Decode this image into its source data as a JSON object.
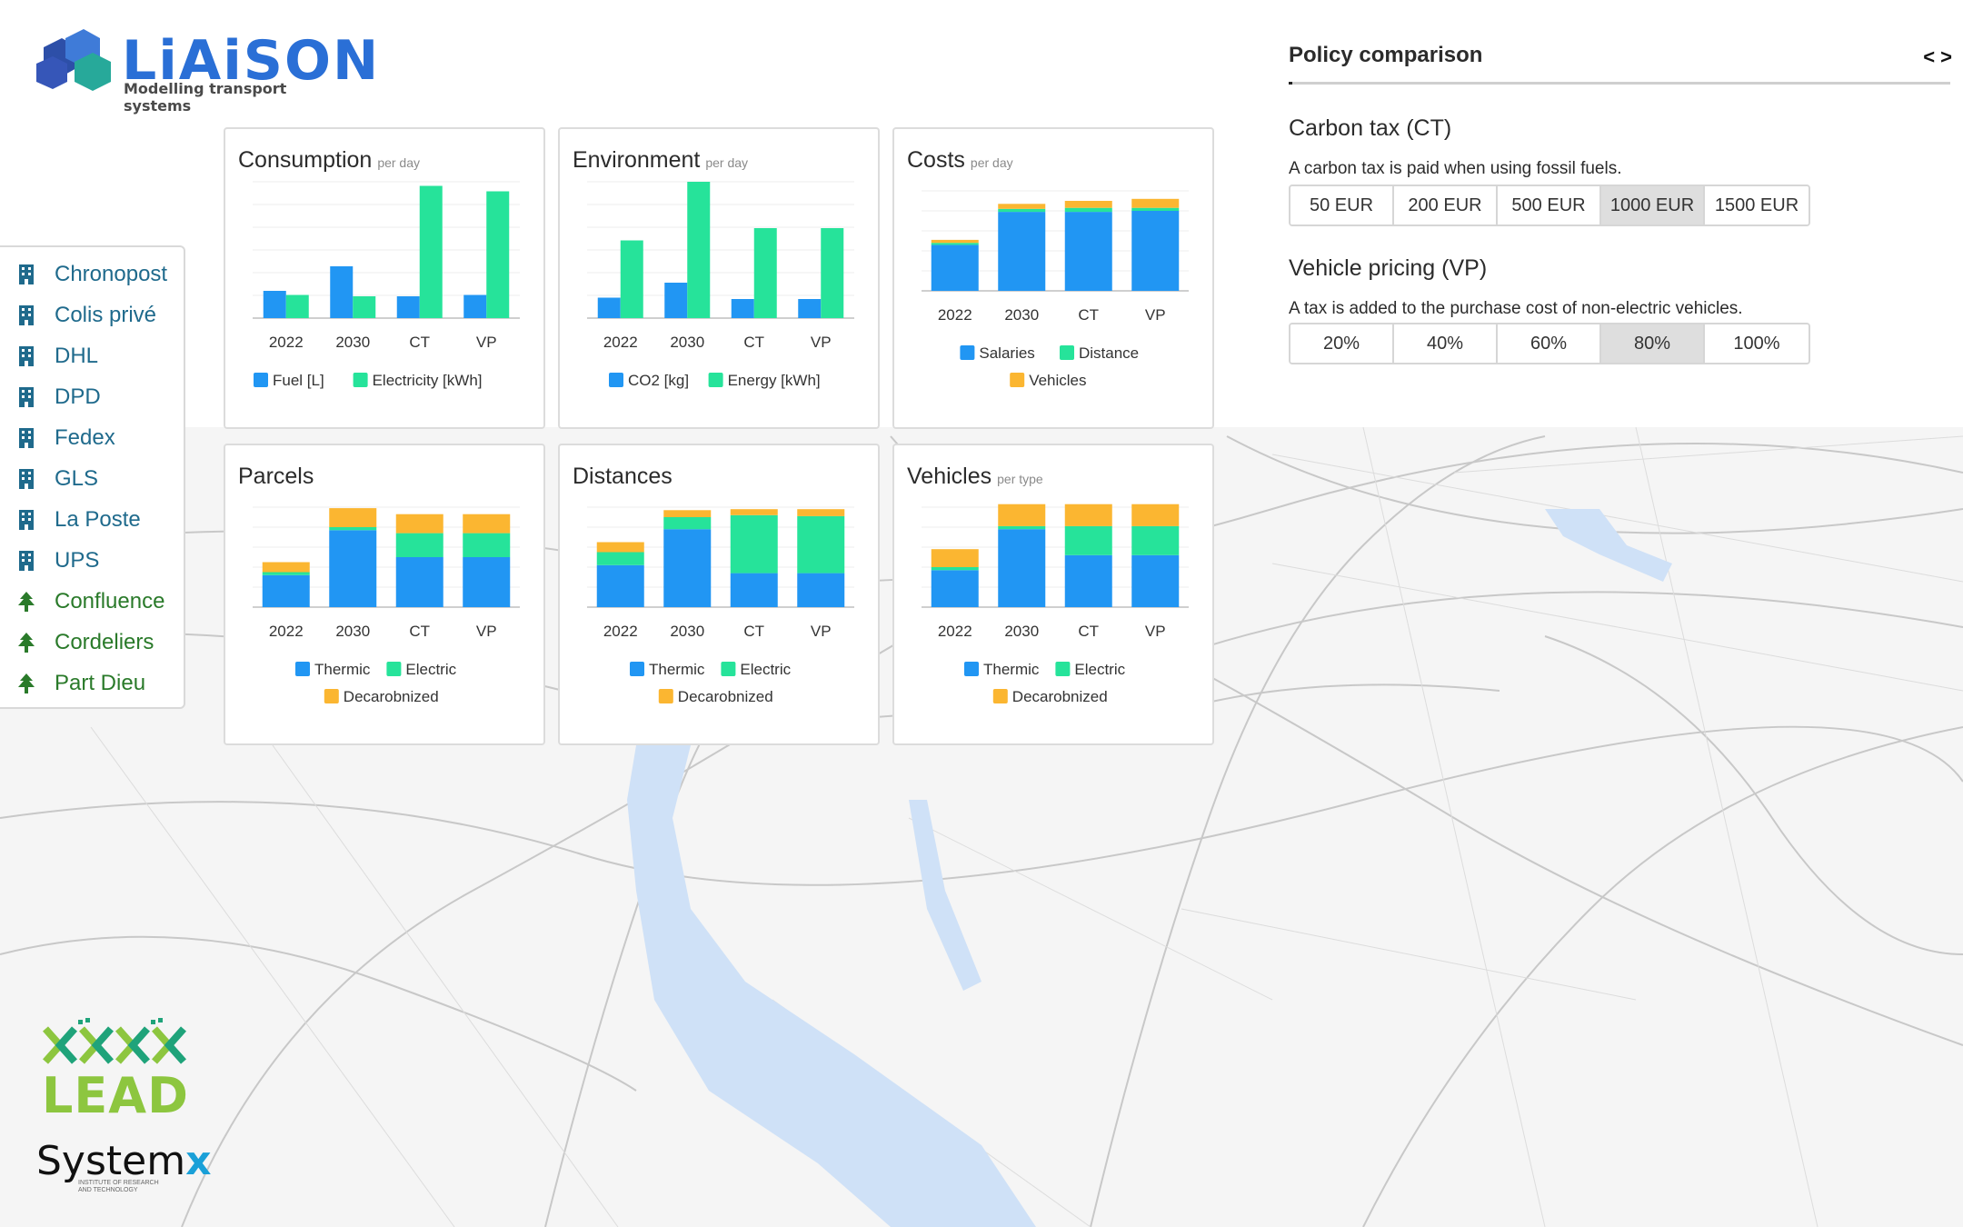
{
  "app": {
    "name": "LiAiSON",
    "tagline": "Modelling transport systems"
  },
  "sidebar": {
    "items": [
      {
        "label": "Chronopost",
        "kind": "company",
        "icon": "building-icon"
      },
      {
        "label": "Colis privé",
        "kind": "company",
        "icon": "building-icon"
      },
      {
        "label": "DHL",
        "kind": "company",
        "icon": "building-icon"
      },
      {
        "label": "DPD",
        "kind": "company",
        "icon": "building-icon"
      },
      {
        "label": "Fedex",
        "kind": "company",
        "icon": "building-icon"
      },
      {
        "label": "GLS",
        "kind": "company",
        "icon": "building-icon"
      },
      {
        "label": "La Poste",
        "kind": "company",
        "icon": "building-icon"
      },
      {
        "label": "UPS",
        "kind": "company",
        "icon": "building-icon"
      },
      {
        "label": "Confluence",
        "kind": "zone",
        "icon": "tree-icon"
      },
      {
        "label": "Cordeliers",
        "kind": "zone",
        "icon": "tree-icon"
      },
      {
        "label": "Part Dieu",
        "kind": "zone",
        "icon": "tree-icon"
      }
    ]
  },
  "colors": {
    "blue": "#2196f3",
    "green": "#26e39a",
    "orange": "#fbb631",
    "accent": "#2a6fd6"
  },
  "chart_data": [
    {
      "type": "bar",
      "title": "Consumption",
      "subtitle": "per day",
      "categories": [
        "2022",
        "2030",
        "CT",
        "VP"
      ],
      "stacked": false,
      "ylim": [
        0,
        100
      ],
      "series": [
        {
          "name": "Fuel [L]",
          "color": "blue",
          "values": [
            20,
            38,
            16,
            17
          ]
        },
        {
          "name": "Electricity [kWh]",
          "color": "green",
          "values": [
            17,
            16,
            97,
            93
          ]
        }
      ],
      "legend": [
        [
          "Fuel [L]",
          "Electricity [kWh]"
        ]
      ]
    },
    {
      "type": "bar",
      "title": "Environment",
      "subtitle": "per day",
      "categories": [
        "2022",
        "2030",
        "CT",
        "VP"
      ],
      "stacked": false,
      "ylim": [
        0,
        100
      ],
      "series": [
        {
          "name": "CO2 [kg]",
          "color": "blue",
          "values": [
            15,
            26,
            14,
            14
          ]
        },
        {
          "name": "Energy [kWh]",
          "color": "green",
          "values": [
            57,
            100,
            66,
            66
          ]
        }
      ],
      "legend": [
        [
          "CO2 [kg]",
          "Energy [kWh]"
        ]
      ]
    },
    {
      "type": "bar",
      "title": "Costs",
      "subtitle": "per day",
      "categories": [
        "2022",
        "2030",
        "CT",
        "VP"
      ],
      "stacked": true,
      "ylim": [
        0,
        100
      ],
      "series": [
        {
          "name": "Salaries",
          "color": "blue",
          "values": [
            46,
            79,
            79,
            80
          ]
        },
        {
          "name": "Distance",
          "color": "green",
          "values": [
            2,
            3,
            4,
            3
          ]
        },
        {
          "name": "Vehicles",
          "color": "orange",
          "values": [
            3,
            5,
            7,
            9
          ]
        }
      ],
      "legend": [
        [
          "Salaries",
          "Distance"
        ],
        [
          "Vehicles"
        ]
      ]
    },
    {
      "type": "bar",
      "title": "Parcels",
      "subtitle": "",
      "categories": [
        "2022",
        "2030",
        "CT",
        "VP"
      ],
      "stacked": true,
      "ylim": [
        0,
        100
      ],
      "series": [
        {
          "name": "Thermic",
          "color": "blue",
          "values": [
            32,
            77,
            50,
            50
          ]
        },
        {
          "name": "Electric",
          "color": "green",
          "values": [
            3,
            3,
            24,
            24
          ]
        },
        {
          "name": "Decarobnized",
          "color": "orange",
          "values": [
            10,
            19,
            19,
            19
          ]
        }
      ],
      "legend": [
        [
          "Thermic",
          "Electric"
        ],
        [
          "Decarobnized"
        ]
      ]
    },
    {
      "type": "bar",
      "title": "Distances",
      "subtitle": "",
      "categories": [
        "2022",
        "2030",
        "CT",
        "VP"
      ],
      "stacked": true,
      "ylim": [
        0,
        100
      ],
      "series": [
        {
          "name": "Thermic",
          "color": "blue",
          "values": [
            42,
            78,
            34,
            34
          ]
        },
        {
          "name": "Electric",
          "color": "green",
          "values": [
            13,
            12,
            58,
            57
          ]
        },
        {
          "name": "Decarobnized",
          "color": "orange",
          "values": [
            10,
            7,
            6,
            7
          ]
        }
      ],
      "legend": [
        [
          "Thermic",
          "Electric"
        ],
        [
          "Decarobnized"
        ]
      ]
    },
    {
      "type": "bar",
      "title": "Vehicles",
      "subtitle": "per type",
      "categories": [
        "2022",
        "2030",
        "CT",
        "VP"
      ],
      "stacked": true,
      "ylim": [
        0,
        100
      ],
      "series": [
        {
          "name": "Thermic",
          "color": "blue",
          "values": [
            37,
            78,
            52,
            52
          ]
        },
        {
          "name": "Electric",
          "color": "green",
          "values": [
            3,
            3,
            29,
            29
          ]
        },
        {
          "name": "Decarobnized",
          "color": "orange",
          "values": [
            18,
            22,
            22,
            22
          ]
        }
      ],
      "legend": [
        [
          "Thermic",
          "Electric"
        ],
        [
          "Decarobnized"
        ]
      ]
    }
  ],
  "policy": {
    "title": "Policy comparison",
    "nav": "< >",
    "sections": [
      {
        "title": "Carbon tax (CT)",
        "description": "A carbon tax is paid when using fossil fuels.",
        "options": [
          "50 EUR",
          "200 EUR",
          "500 EUR",
          "1000 EUR",
          "1500 EUR"
        ],
        "selected": "1000 EUR"
      },
      {
        "title": "Vehicle pricing (VP)",
        "description": "A tax is added to the purchase cost of non-electric vehicles.",
        "options": [
          "20%",
          "40%",
          "60%",
          "80%",
          "100%"
        ],
        "selected": "80%"
      }
    ]
  },
  "partners": {
    "lead": "LEAD",
    "systemx": "System",
    "systemx_x": "x",
    "systemx_sub": "Institute of research and technology"
  }
}
